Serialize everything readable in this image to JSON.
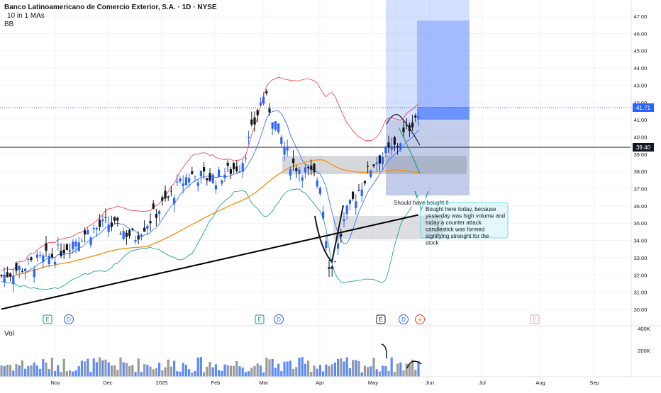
{
  "header": {
    "title": "Banco Latinoamericano de Comercio Exterior, S.A. · 1D · NYSE",
    "indicator_ma": "10 in 1 MAs",
    "indicator_bb": "BB"
  },
  "volume_pane": {
    "label": "Vol",
    "axis_labels": [
      "400K",
      "200K"
    ]
  },
  "price_axis": {
    "labels": [
      "47.00",
      "46.00",
      "45.00",
      "44.00",
      "43.00",
      "42.00",
      "41.00",
      "40.00",
      "39.00",
      "38.00",
      "37.00",
      "36.00",
      "35.00",
      "34.00",
      "33.00",
      "32.00",
      "31.00",
      "30.00"
    ],
    "current_price": "41.71",
    "horizontal_line_price": "39.40"
  },
  "time_axis": {
    "labels": [
      "Nov",
      "Dec",
      "2025",
      "Feb",
      "Mar",
      "Apr",
      "May",
      "Jun",
      "Jul",
      "Aug",
      "Sep"
    ]
  },
  "event_markers": [
    "E",
    "D",
    "E",
    "D",
    "E",
    "D",
    "⚡",
    "E"
  ],
  "annotations": {
    "note1": "Should have bought it",
    "note2": "Bought here today, because yesterday was high volume and today a counter attack candlestick was formed signifying strenght for the stock"
  },
  "colors": {
    "up": "#2962ff",
    "down": "#131722",
    "bb_bands": "#f23645",
    "bb_lower": "#089981",
    "ma_fast": "#2962ff",
    "ma_mid": "#f7931a",
    "ma_slow": "#000000",
    "price_line": "#2962ff",
    "earnings_marker": "#089981",
    "dividend_marker": "#2962ff"
  },
  "chart_data": {
    "type": "candlestick",
    "ticker": "Banco Latinoamericano de Comercio Exterior, S.A.",
    "interval": "1D",
    "exchange": "NYSE",
    "y_range": [
      29.5,
      47.5
    ],
    "last_price": 41.71,
    "key_level": 39.4,
    "price_path": [
      [
        "late Oct",
        31.9
      ],
      [
        "Nov",
        33.2
      ],
      [
        "mid Nov",
        34.3
      ],
      [
        "Dec",
        35.0
      ],
      [
        "mid Dec",
        34.2
      ],
      [
        "2025",
        36.0
      ],
      [
        "mid Jan",
        37.8
      ],
      [
        "Feb",
        37.6
      ],
      [
        "mid Feb",
        38.4
      ],
      [
        "early Mar",
        42.5
      ],
      [
        "mid Mar",
        38.5
      ],
      [
        "Apr",
        37.5
      ],
      [
        "early Apr",
        32.0
      ],
      [
        "mid Apr",
        35.5
      ],
      [
        "late Apr",
        38.5
      ],
      [
        "May",
        39.5
      ],
      [
        "mid May",
        41.2
      ],
      [
        "late May",
        41.71
      ]
    ]
  }
}
